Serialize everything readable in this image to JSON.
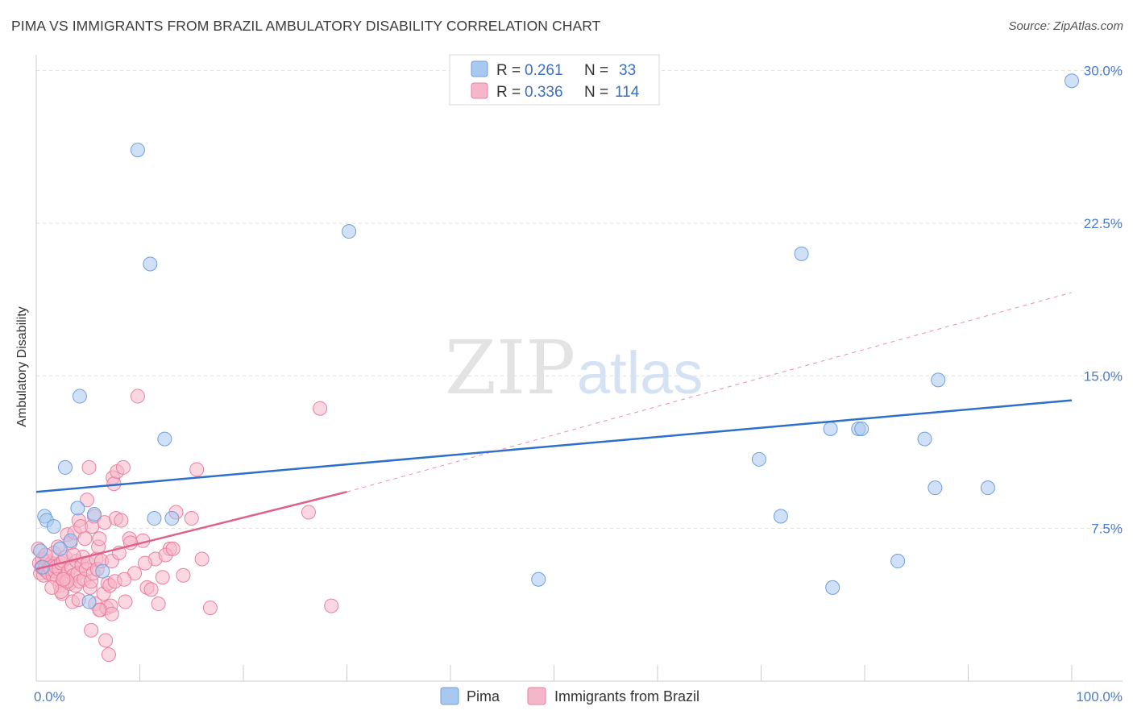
{
  "title": "PIMA VS IMMIGRANTS FROM BRAZIL AMBULATORY DISABILITY CORRELATION CHART",
  "source": "Source: ZipAtlas.com",
  "watermark": {
    "zip": "ZIP",
    "atlas": "atlas"
  },
  "colors": {
    "pima_fill": "#a9c8f0",
    "pima_stroke": "#6f9fdc",
    "pima_line": "#2f6fcc",
    "brazil_fill": "#f6b6c9",
    "brazil_stroke": "#ea7fa0",
    "brazil_line": "#e0608b",
    "grid": "#dddddd",
    "axis_text": "#4a7cc7"
  },
  "legend": {
    "rows": [
      {
        "r_label": "R =",
        "r_value": "0.261",
        "n_label": "N =",
        "n_value": "33"
      },
      {
        "r_label": "R =",
        "r_value": "0.336",
        "n_label": "N =",
        "n_value": "114"
      }
    ]
  },
  "chart_data": {
    "type": "scatter",
    "xlabel": "",
    "ylabel": "Ambulatory Disability",
    "xlim": [
      0,
      100
    ],
    "ylim": [
      0,
      30.5
    ],
    "x_tick_labels": [
      {
        "value": 0,
        "label": "0.0%"
      },
      {
        "value": 100,
        "label": "100.0%"
      }
    ],
    "y_tick_labels": [
      {
        "value": 7.5,
        "label": "7.5%"
      },
      {
        "value": 15.0,
        "label": "15.0%"
      },
      {
        "value": 22.5,
        "label": "22.5%"
      },
      {
        "value": 30.0,
        "label": "30.0%"
      }
    ],
    "grid": true,
    "legend_position": "top-center",
    "series": [
      {
        "name": "Pima",
        "trend": {
          "x": [
            0,
            100
          ],
          "y": [
            9.3,
            13.8
          ],
          "dashed": false
        },
        "points": [
          [
            0.8,
            8.1
          ],
          [
            1.0,
            7.9
          ],
          [
            1.7,
            7.6
          ],
          [
            2.8,
            10.5
          ],
          [
            3.3,
            6.9
          ],
          [
            2.3,
            6.5
          ],
          [
            4.0,
            8.5
          ],
          [
            4.2,
            14.0
          ],
          [
            5.1,
            3.9
          ],
          [
            5.6,
            8.2
          ],
          [
            6.4,
            5.4
          ],
          [
            9.8,
            26.1
          ],
          [
            11.0,
            20.5
          ],
          [
            11.4,
            8.0
          ],
          [
            12.4,
            11.9
          ],
          [
            13.1,
            8.0
          ],
          [
            30.2,
            22.1
          ],
          [
            48.5,
            5.0
          ],
          [
            69.8,
            10.9
          ],
          [
            71.9,
            8.1
          ],
          [
            73.9,
            21.0
          ],
          [
            76.9,
            4.6
          ],
          [
            76.7,
            12.4
          ],
          [
            79.4,
            12.4
          ],
          [
            79.7,
            12.4
          ],
          [
            83.2,
            5.9
          ],
          [
            85.8,
            11.9
          ],
          [
            86.8,
            9.5
          ],
          [
            87.1,
            14.8
          ],
          [
            91.9,
            9.5
          ],
          [
            100.0,
            29.5
          ],
          [
            0.4,
            6.4
          ],
          [
            0.6,
            5.6
          ]
        ]
      },
      {
        "name": "Immigrants from Brazil",
        "trend": {
          "x": [
            0,
            30
          ],
          "y": [
            5.5,
            9.3
          ],
          "dashed": false
        },
        "trend_extension": {
          "x": [
            30,
            100
          ],
          "y": [
            9.3,
            19.1
          ],
          "dashed": true
        },
        "points": [
          [
            0.2,
            6.5
          ],
          [
            0.3,
            5.8
          ],
          [
            0.4,
            5.3
          ],
          [
            0.5,
            5.6
          ],
          [
            0.6,
            6.0
          ],
          [
            0.7,
            5.2
          ],
          [
            0.8,
            5.5
          ],
          [
            0.9,
            5.7
          ],
          [
            1.0,
            5.4
          ],
          [
            1.1,
            5.9
          ],
          [
            1.2,
            5.3
          ],
          [
            1.3,
            5.6
          ],
          [
            1.4,
            5.5
          ],
          [
            1.5,
            5.8
          ],
          [
            1.6,
            5.2
          ],
          [
            1.7,
            6.3
          ],
          [
            1.8,
            5.4
          ],
          [
            1.9,
            5.6
          ],
          [
            2.0,
            5.0
          ],
          [
            2.1,
            6.6
          ],
          [
            2.2,
            5.5
          ],
          [
            2.3,
            4.7
          ],
          [
            2.4,
            5.8
          ],
          [
            2.5,
            4.3
          ],
          [
            2.6,
            5.9
          ],
          [
            2.7,
            5.1
          ],
          [
            2.8,
            6.1
          ],
          [
            2.9,
            4.9
          ],
          [
            3.0,
            7.2
          ],
          [
            3.1,
            5.4
          ],
          [
            3.2,
            4.8
          ],
          [
            3.3,
            6.8
          ],
          [
            3.4,
            5.6
          ],
          [
            3.5,
            3.9
          ],
          [
            3.6,
            5.2
          ],
          [
            3.7,
            7.3
          ],
          [
            3.8,
            4.7
          ],
          [
            3.9,
            5.9
          ],
          [
            4.0,
            5.3
          ],
          [
            4.1,
            7.9
          ],
          [
            4.2,
            4.9
          ],
          [
            4.3,
            7.6
          ],
          [
            4.4,
            5.7
          ],
          [
            4.5,
            6.1
          ],
          [
            4.6,
            5.0
          ],
          [
            4.7,
            7.0
          ],
          [
            4.8,
            5.5
          ],
          [
            4.9,
            8.9
          ],
          [
            5.0,
            5.8
          ],
          [
            5.1,
            10.5
          ],
          [
            5.2,
            4.6
          ],
          [
            5.3,
            4.9
          ],
          [
            5.4,
            7.6
          ],
          [
            5.5,
            5.3
          ],
          [
            5.6,
            8.1
          ],
          [
            5.7,
            3.8
          ],
          [
            5.8,
            6.0
          ],
          [
            5.9,
            5.5
          ],
          [
            6.0,
            6.6
          ],
          [
            6.1,
            7.0
          ],
          [
            6.2,
            3.5
          ],
          [
            6.3,
            5.9
          ],
          [
            6.5,
            4.3
          ],
          [
            6.6,
            7.8
          ],
          [
            6.7,
            2.0
          ],
          [
            6.8,
            3.6
          ],
          [
            6.9,
            4.8
          ],
          [
            7.0,
            1.3
          ],
          [
            7.1,
            4.7
          ],
          [
            7.2,
            3.7
          ],
          [
            7.3,
            5.9
          ],
          [
            7.4,
            10.0
          ],
          [
            7.5,
            9.7
          ],
          [
            7.6,
            4.9
          ],
          [
            7.7,
            8.0
          ],
          [
            7.8,
            10.3
          ],
          [
            8.0,
            6.3
          ],
          [
            8.2,
            7.9
          ],
          [
            8.4,
            10.5
          ],
          [
            8.6,
            3.9
          ],
          [
            9.0,
            7.0
          ],
          [
            9.5,
            5.3
          ],
          [
            9.8,
            14.0
          ],
          [
            10.3,
            6.9
          ],
          [
            10.7,
            4.6
          ],
          [
            11.1,
            4.5
          ],
          [
            11.5,
            6.0
          ],
          [
            11.8,
            3.8
          ],
          [
            12.2,
            5.1
          ],
          [
            12.9,
            6.5
          ],
          [
            13.5,
            8.3
          ],
          [
            14.2,
            5.2
          ],
          [
            15.0,
            8.0
          ],
          [
            15.5,
            10.4
          ],
          [
            16.0,
            6.0
          ],
          [
            16.8,
            3.6
          ],
          [
            2.4,
            4.4
          ],
          [
            3.0,
            4.9
          ],
          [
            3.6,
            6.2
          ],
          [
            4.1,
            4.0
          ],
          [
            1.5,
            4.6
          ],
          [
            5.3,
            2.5
          ],
          [
            6.1,
            3.5
          ],
          [
            7.3,
            3.3
          ],
          [
            8.5,
            5.0
          ],
          [
            9.1,
            6.8
          ],
          [
            10.5,
            5.8
          ],
          [
            12.5,
            6.2
          ],
          [
            13.2,
            6.5
          ],
          [
            26.3,
            8.3
          ],
          [
            27.4,
            13.4
          ],
          [
            28.5,
            3.7
          ],
          [
            0.9,
            6.2
          ],
          [
            2.6,
            5.0
          ]
        ]
      }
    ]
  },
  "bottom_legend": {
    "items": [
      {
        "label": "Pima"
      },
      {
        "label": "Immigrants from Brazil"
      }
    ]
  }
}
